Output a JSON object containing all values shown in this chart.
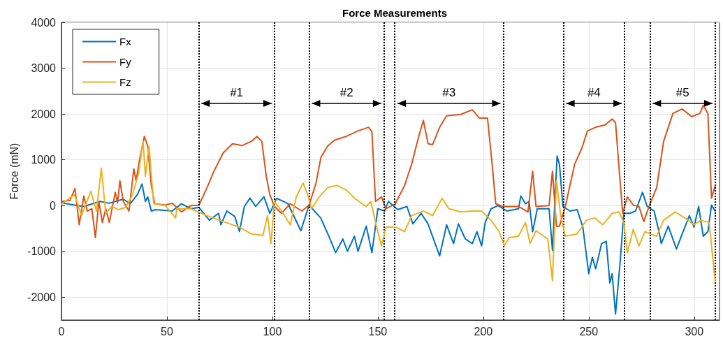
{
  "chart_data": {
    "type": "line",
    "title": "Force Measurements",
    "ylabel": "Force (mN)",
    "xlim": [
      0,
      312
    ],
    "xticks": [
      0,
      50,
      100,
      150,
      200,
      250,
      300
    ],
    "ylim": [
      -2500,
      4000
    ],
    "yticks": [
      -2000,
      -1000,
      0,
      1000,
      2000,
      3000,
      4000
    ],
    "grid": true,
    "legend": "top left",
    "line_style": "solid",
    "marker": "none",
    "series": [
      {
        "name": "Fx",
        "color": "#0072bd",
        "x": [
          0,
          6.2,
          10.6,
          18.3,
          22.7,
          29.3,
          32.6,
          36,
          38.2,
          39.8,
          40.9,
          42.6,
          44.8,
          52.5,
          56.9,
          61.3,
          65.2,
          70.1,
          74.5,
          75.6,
          78.4,
          82.2,
          84.4,
          86.7,
          89.4,
          92.1,
          96,
          98.8,
          102,
          106.5,
          107.4,
          113.5,
          117.4,
          122.9,
          126.8,
          130,
          133.4,
          135.6,
          138.9,
          140.6,
          144.5,
          147.2,
          150,
          153.3,
          155,
          159.4,
          163.8,
          166.6,
          170.5,
          173.8,
          179.3,
          182.6,
          185.9,
          188.2,
          191.5,
          194.8,
          197,
          199.2,
          200.9,
          203.7,
          207,
          211.2,
          216.7,
          217.8,
          220,
          221.7,
          223.4,
          225.6,
          231.2,
          232.8,
          235,
          236.1,
          237.8,
          241.1,
          244.5,
          247.2,
          250,
          251.7,
          253.3,
          256.1,
          258.3,
          260,
          261.1,
          262.7,
          264.9,
          266.6,
          269.4,
          272.2,
          275.5,
          277.7,
          281,
          283.3,
          284.4,
          287.7,
          291.6,
          294.3,
          297.7,
          299.9,
          302.1,
          304.3,
          306.5,
          308.2,
          309.9
        ],
        "values": [
          60,
          10,
          -20,
          90,
          50,
          140,
          40,
          240,
          470,
          90,
          190,
          -120,
          -90,
          -120,
          40,
          -70,
          -40,
          -320,
          -170,
          -420,
          -120,
          -240,
          -570,
          -20,
          160,
          -20,
          190,
          -170,
          160,
          60,
          40,
          -550,
          10,
          -270,
          -670,
          -1030,
          -730,
          -1000,
          -670,
          -1000,
          -450,
          -1030,
          -70,
          -120,
          90,
          -90,
          -20,
          -400,
          -170,
          -400,
          -1100,
          -420,
          -830,
          -400,
          -730,
          -830,
          -570,
          -880,
          -370,
          -70,
          0,
          -120,
          -70,
          210,
          40,
          90,
          -570,
          -70,
          -70,
          -980,
          1080,
          900,
          -20,
          -120,
          -90,
          -470,
          -1490,
          -1130,
          -1380,
          -830,
          -780,
          -1690,
          -1490,
          -2370,
          -1230,
          -170,
          -170,
          -120,
          290,
          -20,
          -120,
          -570,
          -830,
          -450,
          -950,
          -620,
          -220,
          -470,
          -20,
          -670,
          -570,
          10,
          -120
        ]
      },
      {
        "name": "Fy",
        "color": "#d95319",
        "x": [
          0,
          4,
          6.4,
          8.4,
          10.6,
          12.2,
          14.4,
          16.1,
          17.7,
          19.4,
          21,
          22.7,
          25.5,
          26.6,
          27.7,
          29.3,
          32,
          34.3,
          35.4,
          37,
          39.3,
          40.9,
          42.6,
          44.2,
          49.2,
          52.5,
          56.9,
          61.3,
          65.2,
          69,
          72.3,
          76.7,
          81.1,
          85.6,
          90,
          92.7,
          95,
          97.1,
          98.8,
          101,
          104.3,
          108.5,
          114,
          117.4,
          120.7,
          123,
          126.2,
          129.5,
          135,
          140.6,
          145.6,
          147.2,
          148.9,
          151.7,
          153.9,
          158.3,
          162.7,
          166,
          169.4,
          171.6,
          173.8,
          176,
          179.3,
          182.6,
          189.3,
          194.8,
          198.1,
          202,
          204.2,
          205.9,
          209.2,
          211.2,
          216.7,
          221.2,
          223.4,
          225,
          231.2,
          232.8,
          234.7,
          236.1,
          238.9,
          243.3,
          246.7,
          249.4,
          253.3,
          257.8,
          261.1,
          262.7,
          264.4,
          266.1,
          268.3,
          271.1,
          273.8,
          276.1,
          278.8,
          282.2,
          285.5,
          289.9,
          294.3,
          298.8,
          302.7,
          304.3,
          306.5,
          308.2,
          309.9
        ],
        "values": [
          90,
          110,
          370,
          -420,
          210,
          -120,
          -70,
          -700,
          90,
          -370,
          -70,
          -370,
          290,
          60,
          540,
          90,
          -120,
          800,
          540,
          1000,
          1510,
          1300,
          440,
          40,
          10,
          50,
          -140,
          0,
          10,
          390,
          750,
          1150,
          1350,
          1310,
          1400,
          1510,
          1400,
          640,
          240,
          -20,
          -170,
          40,
          -120,
          10,
          490,
          1050,
          1300,
          1430,
          1510,
          1630,
          1710,
          1610,
          90,
          190,
          -70,
          40,
          440,
          900,
          1510,
          1860,
          1350,
          1330,
          1710,
          1960,
          1990,
          2090,
          1910,
          1910,
          900,
          40,
          -20,
          -20,
          -20,
          -140,
          750,
          -20,
          0,
          750,
          -450,
          -450,
          -20,
          900,
          1250,
          1630,
          1710,
          1760,
          1890,
          1810,
          800,
          -170,
          190,
          10,
          -20,
          -350,
          10,
          390,
          1400,
          2010,
          2110,
          1940,
          2010,
          2190,
          2010,
          160,
          420
        ]
      },
      {
        "name": "Fz",
        "color": "#edb120",
        "x": [
          0,
          6.2,
          9.5,
          13.9,
          16.6,
          18.9,
          21,
          23.8,
          27.1,
          30.4,
          33.7,
          36.5,
          38.7,
          39.8,
          41.5,
          43.7,
          49.2,
          54.1,
          54.7,
          61.3,
          69,
          76.7,
          84.4,
          90,
          95.5,
          97.7,
          99.3,
          101,
          104.3,
          108.5,
          111.3,
          114.6,
          116.8,
          118.5,
          122.3,
          126.2,
          130.6,
          135,
          139.5,
          144.5,
          146.7,
          149.4,
          151.7,
          153.9,
          158.3,
          162.7,
          166,
          171.6,
          176,
          180.4,
          183.7,
          189.3,
          194.8,
          199.2,
          203.7,
          207.5,
          210,
          212.3,
          216.7,
          220,
          222.2,
          225,
          230.6,
          232.8,
          234.7,
          236.7,
          238.9,
          244.5,
          248.9,
          252.8,
          256.7,
          261.1,
          264.4,
          266.6,
          268.3,
          271.1,
          273.8,
          276.6,
          282.2,
          285.5,
          291,
          295.5,
          299.9,
          303.2,
          307.1,
          309.9
        ],
        "values": [
          30,
          240,
          -220,
          310,
          -120,
          820,
          -170,
          -20,
          -90,
          -40,
          240,
          690,
          1400,
          640,
          1300,
          40,
          0,
          -270,
          -70,
          -70,
          -220,
          -350,
          -470,
          -620,
          -650,
          -220,
          -830,
          90,
          -120,
          -420,
          190,
          490,
          240,
          -70,
          190,
          390,
          440,
          340,
          140,
          -20,
          90,
          -470,
          -880,
          -470,
          -470,
          -570,
          -220,
          -120,
          -220,
          160,
          -70,
          -140,
          -120,
          -120,
          -320,
          -570,
          -880,
          -700,
          -670,
          -370,
          -830,
          -550,
          -730,
          -1640,
          540,
          -220,
          -670,
          -620,
          -320,
          -270,
          -420,
          -170,
          -140,
          -370,
          -1030,
          -520,
          -880,
          -570,
          -670,
          -320,
          -140,
          -270,
          -420,
          -320,
          -370,
          -1640
        ]
      }
    ],
    "ref_lines": [
      {
        "axis": "x",
        "value": 65,
        "line_style": "dotted",
        "color": "#000000"
      },
      {
        "axis": "x",
        "value": 101,
        "line_style": "dotted",
        "color": "#000000"
      },
      {
        "axis": "x",
        "value": 117.4,
        "line_style": "dotted",
        "color": "#000000"
      },
      {
        "axis": "x",
        "value": 153,
        "line_style": "dotted",
        "color": "#000000"
      },
      {
        "axis": "x",
        "value": 158,
        "line_style": "dotted",
        "color": "#000000"
      },
      {
        "axis": "x",
        "value": 209.5,
        "line_style": "dotted",
        "color": "#000000"
      },
      {
        "axis": "x",
        "value": 238,
        "line_style": "dotted",
        "color": "#000000"
      },
      {
        "axis": "x",
        "value": 267,
        "line_style": "dotted",
        "color": "#000000"
      },
      {
        "axis": "x",
        "value": 279,
        "line_style": "dotted",
        "color": "#000000"
      },
      {
        "axis": "x",
        "value": 310,
        "line_style": "dotted",
        "color": "#000000"
      }
    ],
    "annotations": [
      "#1",
      "#2",
      "#3",
      "#4",
      "#5"
    ]
  }
}
